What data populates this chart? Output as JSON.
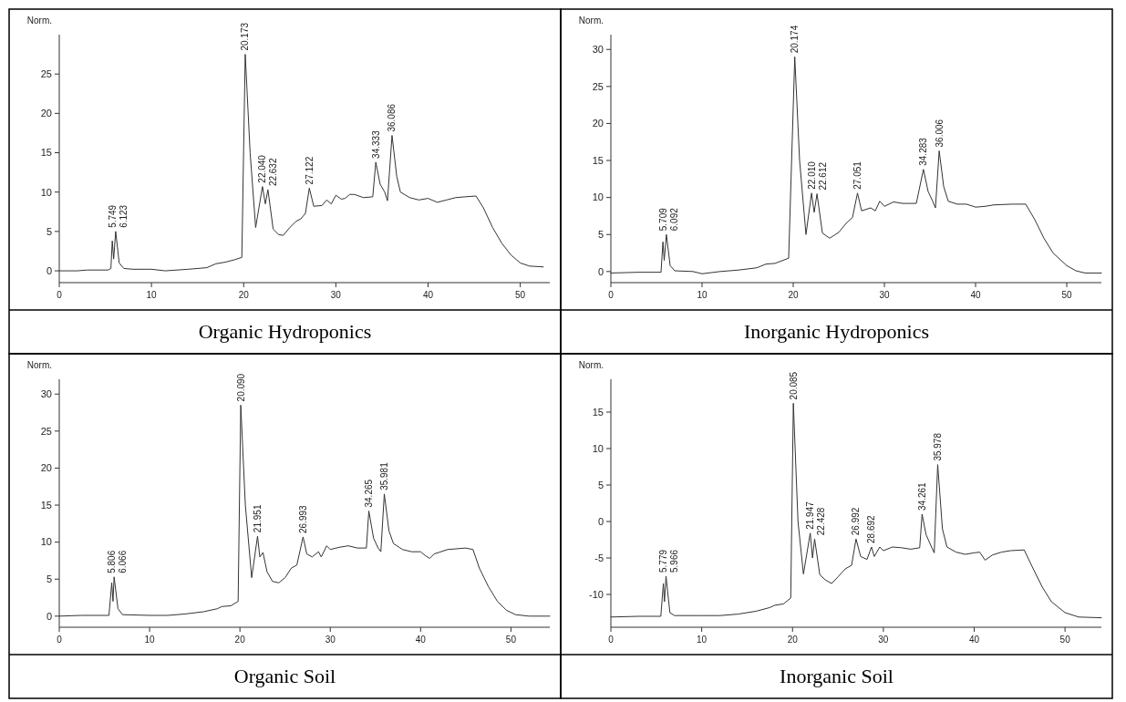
{
  "chart_data": [
    {
      "type": "line",
      "title": "Organic Hydroponics",
      "ylabel": "Norm.",
      "xlim": [
        0,
        53.2
      ],
      "xticks": [
        0,
        10,
        20,
        30,
        40,
        50
      ],
      "ylim": [
        -1.5,
        30
      ],
      "yticks": [
        0,
        5,
        10,
        15,
        20,
        25
      ],
      "series": [
        {
          "color": "#333333",
          "x": [
            0,
            2,
            3,
            5.3,
            5.6,
            5.75,
            5.9,
            6.12,
            6.5,
            7,
            8,
            10,
            11.5,
            14,
            16,
            17,
            18,
            19,
            19.8,
            20.17,
            20.7,
            21.3,
            22.04,
            22.35,
            22.63,
            23.2,
            23.8,
            24.3,
            25,
            25.7,
            26.2,
            26.7,
            27.12,
            27.6,
            28.5,
            29,
            29.5,
            30,
            30.6,
            31,
            31.5,
            32,
            33,
            34,
            34.33,
            34.8,
            35.3,
            35.6,
            36.09,
            36.6,
            37,
            38,
            39,
            40,
            41,
            42,
            43,
            44,
            45.2,
            46,
            47,
            48,
            49,
            50,
            51,
            52.5
          ],
          "values": [
            0,
            0,
            0.1,
            0.1,
            0.3,
            3.8,
            1.5,
            5,
            1,
            0.3,
            0.2,
            0.2,
            0,
            0.2,
            0.4,
            0.9,
            1.1,
            1.4,
            1.7,
            27.5,
            15,
            5.5,
            10.7,
            8.5,
            10.3,
            5.3,
            4.6,
            4.5,
            5.5,
            6.3,
            6.6,
            7.3,
            10.5,
            8.2,
            8.3,
            9,
            8.5,
            9.6,
            9.1,
            9.2,
            9.7,
            9.7,
            9.3,
            9.4,
            13.8,
            11,
            10,
            8.9,
            17.2,
            12,
            10,
            9.3,
            9,
            9.2,
            8.7,
            9,
            9.3,
            9.4,
            9.5,
            8,
            5.5,
            3.5,
            2,
            1,
            0.6,
            0.5
          ]
        }
      ],
      "annotations": [
        {
          "text": "5.749",
          "x": 5.75,
          "y": 3.8
        },
        {
          "text": "6.123",
          "x": 6.12,
          "y": 5
        },
        {
          "text": "20.173",
          "x": 20.17,
          "y": 27.5
        },
        {
          "text": "22.040",
          "x": 22.04,
          "y": 10.7
        },
        {
          "text": "22.632",
          "x": 22.63,
          "y": 10.3
        },
        {
          "text": "27.122",
          "x": 27.12,
          "y": 10.5
        },
        {
          "text": "34.333",
          "x": 34.33,
          "y": 13.8
        },
        {
          "text": "36.086",
          "x": 36.09,
          "y": 17.2
        }
      ]
    },
    {
      "type": "line",
      "title": "Inorganic Hydroponics",
      "ylabel": "Norm.",
      "xlim": [
        0,
        53.8
      ],
      "xticks": [
        0,
        10,
        20,
        30,
        40,
        50
      ],
      "ylim": [
        -1.5,
        32
      ],
      "yticks": [
        0,
        5,
        10,
        15,
        20,
        25,
        30
      ],
      "series": [
        {
          "color": "#333333",
          "x": [
            0,
            3,
            5.5,
            5.71,
            5.85,
            6.09,
            6.5,
            7,
            9,
            10,
            12,
            14,
            16,
            17,
            18,
            19.5,
            20.17,
            20.7,
            21.4,
            22.01,
            22.3,
            22.61,
            23.2,
            24,
            25,
            25.8,
            26.5,
            27.05,
            27.5,
            28.5,
            29,
            29.5,
            30,
            31,
            32,
            33.5,
            34.28,
            34.8,
            35.3,
            35.6,
            36.01,
            36.5,
            37,
            38,
            39,
            40,
            41,
            42,
            44,
            45.5,
            46.5,
            47.5,
            48.5,
            50,
            51,
            52,
            53.8
          ],
          "values": [
            -0.2,
            -0.1,
            -0.1,
            4,
            1.5,
            5,
            0.8,
            0.1,
            0,
            -0.3,
            0,
            0.2,
            0.5,
            1,
            1.1,
            1.8,
            29,
            15,
            5,
            10.6,
            8,
            10.5,
            5.2,
            4.5,
            5.3,
            6.5,
            7.3,
            10.6,
            8.2,
            8.6,
            8.2,
            9.5,
            8.8,
            9.4,
            9.2,
            9.2,
            13.8,
            10.8,
            9.5,
            8.6,
            16.3,
            11.5,
            9.5,
            9.1,
            9.1,
            8.7,
            8.8,
            9,
            9.1,
            9.1,
            7,
            4.5,
            2.5,
            0.8,
            0.1,
            -0.2,
            -0.2
          ]
        }
      ],
      "annotations": [
        {
          "text": "5.709",
          "x": 5.71,
          "y": 4
        },
        {
          "text": "6.092",
          "x": 6.09,
          "y": 5
        },
        {
          "text": "20.174",
          "x": 20.17,
          "y": 29
        },
        {
          "text": "22.010",
          "x": 22.01,
          "y": 10.6
        },
        {
          "text": "22.612",
          "x": 22.61,
          "y": 10.5
        },
        {
          "text": "27.051",
          "x": 27.05,
          "y": 10.6
        },
        {
          "text": "34.283",
          "x": 34.28,
          "y": 13.8
        },
        {
          "text": "36.006",
          "x": 36.01,
          "y": 16.3
        }
      ]
    },
    {
      "type": "line",
      "title": "Organic Soil",
      "ylabel": "Norm.",
      "xlim": [
        0,
        54.3
      ],
      "xticks": [
        0,
        10,
        20,
        30,
        40,
        50
      ],
      "ylim": [
        -1.5,
        32
      ],
      "yticks": [
        0,
        5,
        10,
        15,
        20,
        25,
        30
      ],
      "series": [
        {
          "color": "#333333",
          "x": [
            0,
            2.5,
            5.5,
            5.81,
            5.95,
            6.07,
            6.5,
            7,
            10,
            12,
            14,
            16,
            17.5,
            18,
            19,
            19.8,
            20.09,
            20.6,
            21.3,
            21.95,
            22.2,
            22.55,
            23,
            23.6,
            24.3,
            25,
            25.7,
            26.3,
            26.99,
            27.4,
            28,
            28.7,
            29,
            29.6,
            30,
            31,
            32,
            33,
            34,
            34.27,
            34.8,
            35.3,
            35.6,
            35.98,
            36.5,
            37,
            38,
            39,
            40,
            40.5,
            41,
            41.5,
            42,
            43,
            44,
            45,
            45.8,
            46.5,
            47.5,
            48.5,
            49.5,
            50.5,
            52,
            54.3
          ],
          "values": [
            0,
            0.1,
            0.1,
            4.5,
            2,
            5.3,
            1,
            0.2,
            0.1,
            0.1,
            0.3,
            0.6,
            1,
            1.3,
            1.4,
            2,
            28.5,
            15,
            5.2,
            10.8,
            8,
            8.6,
            6,
            4.7,
            4.5,
            5.2,
            6.5,
            6.9,
            10.7,
            8.4,
            8,
            8.7,
            8,
            9.5,
            9,
            9.3,
            9.5,
            9.2,
            9.2,
            14.2,
            10.5,
            9.2,
            8.7,
            16.5,
            11.5,
            9.8,
            9,
            8.7,
            8.7,
            8.2,
            7.8,
            8.4,
            8.6,
            9,
            9.1,
            9.2,
            9,
            6.5,
            4,
            2,
            0.8,
            0.2,
            0,
            0
          ]
        }
      ],
      "annotations": [
        {
          "text": "5.806",
          "x": 5.81,
          "y": 4.5
        },
        {
          "text": "6.066",
          "x": 6.07,
          "y": 5.3
        },
        {
          "text": "20.090",
          "x": 20.09,
          "y": 28.5
        },
        {
          "text": "21.951",
          "x": 21.95,
          "y": 10.8
        },
        {
          "text": "26.993",
          "x": 26.99,
          "y": 10.7
        },
        {
          "text": "34.265",
          "x": 34.27,
          "y": 14.2
        },
        {
          "text": "35.981",
          "x": 35.98,
          "y": 16.5
        }
      ]
    },
    {
      "type": "line",
      "title": "Inorganic Soil",
      "ylabel": "Norm.",
      "xlim": [
        0,
        54
      ],
      "xticks": [
        0,
        10,
        20,
        30,
        40,
        50
      ],
      "ylim": [
        -14.5,
        19.5
      ],
      "yticks": [
        -10,
        -5,
        0,
        5,
        10,
        15
      ],
      "series": [
        {
          "color": "#333333",
          "x": [
            0,
            3,
            5.5,
            5.78,
            5.9,
            6.07,
            6.5,
            7,
            10,
            12,
            14,
            16,
            17.5,
            18,
            19,
            19.8,
            20.09,
            20.6,
            21.2,
            21.95,
            22.2,
            22.43,
            23,
            23.6,
            24.3,
            25,
            25.8,
            26.5,
            26.99,
            27.5,
            28.2,
            28.69,
            29,
            29.6,
            30,
            31,
            32,
            33,
            34,
            34.26,
            34.7,
            35.3,
            35.6,
            35.98,
            36.5,
            37,
            38,
            39,
            40,
            40.6,
            41.2,
            42,
            43,
            44,
            45.5,
            46.5,
            47.5,
            48.5,
            50,
            51.5,
            54
          ],
          "values": [
            -13.1,
            -13,
            -13,
            -8.5,
            -11,
            -7.5,
            -12.5,
            -12.9,
            -12.9,
            -12.9,
            -12.7,
            -12.3,
            -11.8,
            -11.5,
            -11.3,
            -10.5,
            16.2,
            0,
            -7.2,
            -1.6,
            -5,
            -2.4,
            -7.3,
            -8,
            -8.5,
            -7.6,
            -6.5,
            -6,
            -2.4,
            -4.8,
            -5.2,
            -3.5,
            -4.8,
            -3.5,
            -4,
            -3.5,
            -3.6,
            -3.8,
            -3.6,
            1,
            -1.8,
            -3.5,
            -4.3,
            7.8,
            -1,
            -3.5,
            -4.2,
            -4.5,
            -4.3,
            -4.2,
            -5.3,
            -4.6,
            -4.2,
            -4,
            -3.9,
            -6.5,
            -9,
            -11,
            -12.5,
            -13.1,
            -13.2
          ]
        }
      ],
      "annotations": [
        {
          "text": "5.779",
          "x": 5.78,
          "y": -8.5
        },
        {
          "text": "5.966",
          "x": 6.07,
          "y": -7.5
        },
        {
          "text": "20.085",
          "x": 20.09,
          "y": 16.2
        },
        {
          "text": "21.947",
          "x": 21.95,
          "y": -1.6
        },
        {
          "text": "22.428",
          "x": 22.43,
          "y": -2.4
        },
        {
          "text": "26.992",
          "x": 26.99,
          "y": -2.4
        },
        {
          "text": "28.692",
          "x": 28.69,
          "y": -3.5
        },
        {
          "text": "34.261",
          "x": 34.26,
          "y": 1
        },
        {
          "text": "35.978",
          "x": 35.98,
          "y": 7.8
        }
      ]
    }
  ]
}
